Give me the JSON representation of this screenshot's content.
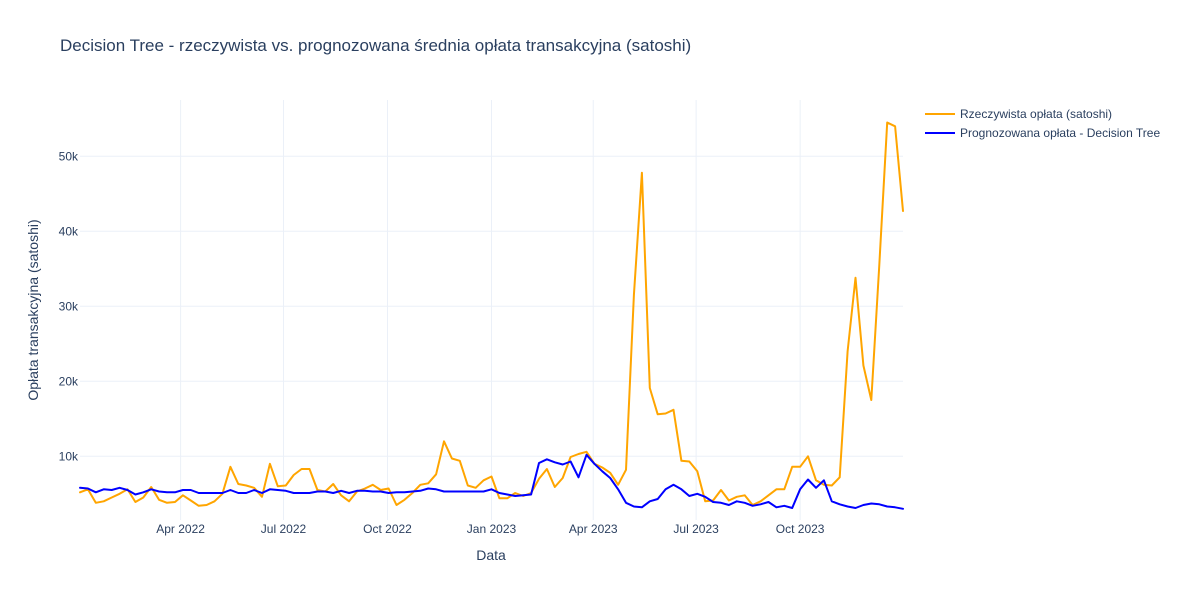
{
  "chart_data": {
    "type": "line",
    "title": "Decision Tree - rzeczywista vs. prognozowana średnia opłata transakcyjna (satoshi)",
    "xlabel": "Data",
    "ylabel": "Opłata transakcyjna (satoshi)",
    "x_ticks": [
      {
        "date": "2022-04-01",
        "label": "Apr 2022"
      },
      {
        "date": "2022-07-01",
        "label": "Jul 2022"
      },
      {
        "date": "2022-10-01",
        "label": "Oct 2022"
      },
      {
        "date": "2023-01-01",
        "label": "Jan 2023"
      },
      {
        "date": "2023-04-01",
        "label": "Apr 2023"
      },
      {
        "date": "2023-07-01",
        "label": "Jul 2023"
      },
      {
        "date": "2023-10-01",
        "label": "Oct 2023"
      }
    ],
    "y_ticks": [
      {
        "value": 10000,
        "label": "10k"
      },
      {
        "value": 20000,
        "label": "20k"
      },
      {
        "value": 30000,
        "label": "30k"
      },
      {
        "value": 40000,
        "label": "40k"
      },
      {
        "value": 50000,
        "label": "50k"
      }
    ],
    "xlim": [
      "2022-01-02",
      "2023-12-31"
    ],
    "ylim": [
      1500,
      57500
    ],
    "grid": true,
    "legend_position": "top-right",
    "x": [
      "2022-01-02",
      "2022-01-09",
      "2022-01-16",
      "2022-01-23",
      "2022-01-30",
      "2022-02-06",
      "2022-02-13",
      "2022-02-20",
      "2022-02-27",
      "2022-03-06",
      "2022-03-13",
      "2022-03-20",
      "2022-03-27",
      "2022-04-03",
      "2022-04-10",
      "2022-04-17",
      "2022-04-24",
      "2022-05-01",
      "2022-05-08",
      "2022-05-15",
      "2022-05-22",
      "2022-05-29",
      "2022-06-05",
      "2022-06-12",
      "2022-06-19",
      "2022-06-26",
      "2022-07-03",
      "2022-07-10",
      "2022-07-17",
      "2022-07-24",
      "2022-07-31",
      "2022-08-07",
      "2022-08-14",
      "2022-08-21",
      "2022-08-28",
      "2022-09-04",
      "2022-09-11",
      "2022-09-18",
      "2022-09-25",
      "2022-10-02",
      "2022-10-09",
      "2022-10-16",
      "2022-10-23",
      "2022-10-30",
      "2022-11-06",
      "2022-11-13",
      "2022-11-20",
      "2022-11-27",
      "2022-12-04",
      "2022-12-11",
      "2022-12-18",
      "2022-12-25",
      "2023-01-01",
      "2023-01-08",
      "2023-01-15",
      "2023-01-22",
      "2023-01-29",
      "2023-02-05",
      "2023-02-12",
      "2023-02-19",
      "2023-02-26",
      "2023-03-05",
      "2023-03-12",
      "2023-03-19",
      "2023-03-26",
      "2023-04-02",
      "2023-04-09",
      "2023-04-16",
      "2023-04-23",
      "2023-04-30",
      "2023-05-07",
      "2023-05-14",
      "2023-05-21",
      "2023-05-28",
      "2023-06-04",
      "2023-06-11",
      "2023-06-18",
      "2023-06-25",
      "2023-07-02",
      "2023-07-09",
      "2023-07-16",
      "2023-07-23",
      "2023-07-30",
      "2023-08-06",
      "2023-08-13",
      "2023-08-20",
      "2023-08-27",
      "2023-09-03",
      "2023-09-10",
      "2023-09-17",
      "2023-09-24",
      "2023-10-01",
      "2023-10-08",
      "2023-10-15",
      "2023-10-22",
      "2023-10-29",
      "2023-11-05",
      "2023-11-12",
      "2023-11-19",
      "2023-11-26",
      "2023-12-03",
      "2023-12-10",
      "2023-12-17",
      "2023-12-24",
      "2023-12-31"
    ],
    "series": [
      {
        "name": "Rzeczywista opłata (satoshi)",
        "color": "#FFA500",
        "values": [
          5200,
          5600,
          3800,
          4000,
          4500,
          5000,
          5600,
          3900,
          4500,
          5900,
          4200,
          3800,
          3900,
          4800,
          4100,
          3400,
          3500,
          4000,
          5000,
          8600,
          6300,
          6100,
          5800,
          4600,
          9000,
          6000,
          6100,
          7500,
          8300,
          8300,
          5500,
          5300,
          6300,
          4800,
          4000,
          5300,
          5700,
          6200,
          5500,
          5700,
          3500,
          4200,
          5100,
          6200,
          6400,
          7600,
          12000,
          9700,
          9400,
          6100,
          5800,
          6800,
          7300,
          4400,
          4400,
          5100,
          4700,
          5100,
          7000,
          8300,
          5900,
          7100,
          9900,
          10300,
          10600,
          9000,
          8500,
          7800,
          6200,
          8200,
          31500,
          47800,
          19100,
          15600,
          15700,
          16200,
          9400,
          9300,
          8000,
          4000,
          4100,
          5500,
          4100,
          4600,
          4800,
          3500,
          4000,
          4800,
          5600,
          5600,
          8600,
          8600,
          10000,
          6800,
          6200,
          6100,
          7200,
          24000,
          33800,
          22100,
          17500,
          35500,
          54500,
          54000,
          42700
        ]
      },
      {
        "name": "Prognozowana opłata - Decision Tree",
        "color": "#0000FF",
        "values": [
          5800,
          5700,
          5200,
          5600,
          5500,
          5800,
          5500,
          4900,
          5200,
          5600,
          5300,
          5200,
          5200,
          5500,
          5500,
          5100,
          5100,
          5100,
          5100,
          5500,
          5100,
          5100,
          5500,
          5100,
          5600,
          5500,
          5400,
          5100,
          5100,
          5100,
          5300,
          5300,
          5100,
          5400,
          5100,
          5400,
          5400,
          5300,
          5300,
          5100,
          5200,
          5200,
          5300,
          5400,
          5700,
          5600,
          5300,
          5300,
          5300,
          5300,
          5300,
          5300,
          5600,
          5100,
          4900,
          4700,
          4800,
          4900,
          9100,
          9600,
          9200,
          8900,
          9300,
          7200,
          10200,
          9000,
          8000,
          7100,
          5600,
          3800,
          3300,
          3200,
          4000,
          4300,
          5600,
          6200,
          5600,
          4700,
          5000,
          4600,
          3900,
          3800,
          3500,
          4000,
          3800,
          3400,
          3600,
          3900,
          3200,
          3400,
          3100,
          5600,
          6900,
          5800,
          6800,
          4000,
          3600,
          3300,
          3100,
          3500,
          3700,
          3600,
          3300,
          3200,
          3000
        ]
      }
    ]
  }
}
